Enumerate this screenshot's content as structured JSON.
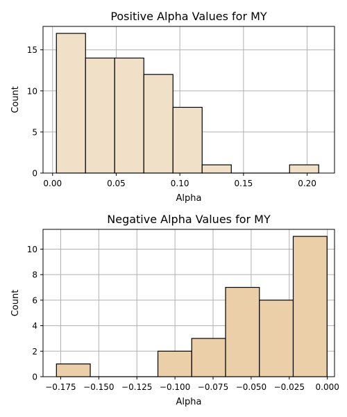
{
  "chart_data": [
    {
      "type": "bar",
      "title": "Positive Alpha Values for MY",
      "xlabel": "Alpha",
      "ylabel": "Count",
      "xlim": [
        -0.0075,
        0.2215
      ],
      "ylim": [
        0,
        17.85
      ],
      "grid": true,
      "bar_color": "#f0e0c8",
      "edge_color": "#000000",
      "bins": [
        {
          "x0": 0.003,
          "x1": 0.0259,
          "count": 17
        },
        {
          "x0": 0.0259,
          "x1": 0.0488,
          "count": 14
        },
        {
          "x0": 0.0488,
          "x1": 0.0717,
          "count": 14
        },
        {
          "x0": 0.0717,
          "x1": 0.0946,
          "count": 12
        },
        {
          "x0": 0.0946,
          "x1": 0.1175,
          "count": 8
        },
        {
          "x0": 0.1175,
          "x1": 0.1404,
          "count": 1
        },
        {
          "x0": 0.1404,
          "x1": 0.1633,
          "count": 0
        },
        {
          "x0": 0.1633,
          "x1": 0.1862,
          "count": 0
        },
        {
          "x0": 0.1862,
          "x1": 0.2091,
          "count": 1
        }
      ],
      "xticks": [
        {
          "v": 0.0,
          "label": "0.00"
        },
        {
          "v": 0.05,
          "label": "0.05"
        },
        {
          "v": 0.1,
          "label": "0.10"
        },
        {
          "v": 0.15,
          "label": "0.15"
        },
        {
          "v": 0.2,
          "label": "0.20"
        }
      ],
      "yticks": [
        {
          "v": 0,
          "label": "0"
        },
        {
          "v": 5,
          "label": "5"
        },
        {
          "v": 10,
          "label": "10"
        },
        {
          "v": 15,
          "label": "15"
        }
      ]
    },
    {
      "type": "bar",
      "title": "Negative Alpha Values for MY",
      "xlabel": "Alpha",
      "ylabel": "Count",
      "xlim": [
        -0.1866,
        0.0047
      ],
      "ylim": [
        0,
        11.55
      ],
      "grid": true,
      "bar_color": "#eacfa8",
      "edge_color": "#000000",
      "bins": [
        {
          "x0": -0.1778,
          "x1": -0.1556,
          "count": 1
        },
        {
          "x0": -0.1556,
          "x1": -0.1334,
          "count": 0
        },
        {
          "x0": -0.1334,
          "x1": -0.1112,
          "count": 0
        },
        {
          "x0": -0.1112,
          "x1": -0.089,
          "count": 2
        },
        {
          "x0": -0.089,
          "x1": -0.0668,
          "count": 3
        },
        {
          "x0": -0.0668,
          "x1": -0.0446,
          "count": 7
        },
        {
          "x0": -0.0446,
          "x1": -0.0224,
          "count": 6
        },
        {
          "x0": -0.0224,
          "x1": -0.0002,
          "count": 11
        }
      ],
      "xticks": [
        {
          "v": -0.175,
          "label": "−0.175"
        },
        {
          "v": -0.15,
          "label": "−0.150"
        },
        {
          "v": -0.125,
          "label": "−0.125"
        },
        {
          "v": -0.1,
          "label": "−0.100"
        },
        {
          "v": -0.075,
          "label": "−0.075"
        },
        {
          "v": -0.05,
          "label": "−0.050"
        },
        {
          "v": -0.025,
          "label": "−0.025"
        },
        {
          "v": 0.0,
          "label": "0.000"
        }
      ],
      "yticks": [
        {
          "v": 0,
          "label": "0"
        },
        {
          "v": 2,
          "label": "2"
        },
        {
          "v": 4,
          "label": "4"
        },
        {
          "v": 6,
          "label": "6"
        },
        {
          "v": 8,
          "label": "8"
        },
        {
          "v": 10,
          "label": "10"
        }
      ]
    }
  ]
}
